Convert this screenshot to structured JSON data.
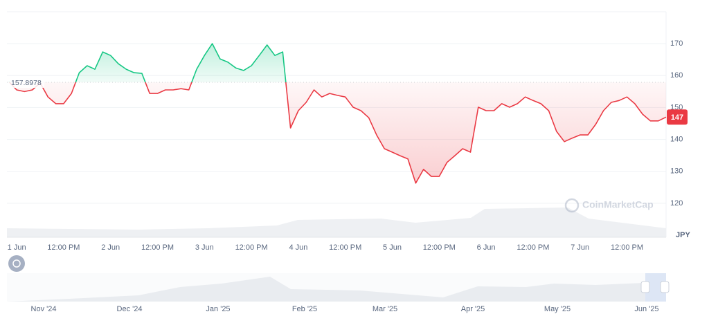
{
  "chart_data": {
    "type": "line",
    "x": [
      -2,
      0,
      2,
      4,
      6,
      8,
      10,
      12,
      14,
      16,
      18,
      20,
      22,
      24,
      26,
      28,
      30,
      32,
      34,
      36,
      38,
      40,
      42,
      44,
      46,
      48,
      50,
      52,
      54,
      56,
      58,
      60,
      62,
      64,
      66,
      68,
      70,
      72,
      74,
      76,
      78,
      80,
      82,
      84,
      86,
      88,
      90,
      92,
      94,
      96,
      98,
      100,
      102,
      104,
      106,
      108,
      110,
      112,
      114,
      116,
      118,
      120,
      122,
      124,
      126,
      128,
      130,
      132,
      134,
      136,
      138,
      140,
      142,
      144,
      146,
      148,
      150,
      152,
      154,
      156,
      158,
      160,
      162,
      164,
      166
    ],
    "series": [
      {
        "up_color": "#16c784",
        "down_color": "#ea3943",
        "values": [
          158.1,
          155.5,
          155,
          155.5,
          157.7,
          153.3,
          151.2,
          151.2,
          154.4,
          160.9,
          163.1,
          162,
          167.4,
          166.3,
          163.7,
          162,
          160.9,
          160.7,
          154.4,
          154.4,
          155.5,
          155.5,
          155.9,
          155.5,
          162,
          166.3,
          170,
          165.2,
          164.2,
          162.4,
          161.6,
          163.1,
          166.3,
          169.6,
          166.3,
          167.4,
          143.6,
          149,
          151.6,
          155.5,
          153.3,
          154.4,
          153.8,
          153.3,
          150.1,
          149,
          146.8,
          141.4,
          137.1,
          136,
          134.9,
          133.9,
          126.3,
          130.6,
          128.4,
          128.4,
          132.8,
          134.9,
          137.1,
          136,
          150.1,
          149,
          149,
          151.2,
          150.1,
          151.2,
          153.3,
          152.2,
          151.2,
          149,
          142.5,
          139.3,
          140.4,
          141.4,
          141.4,
          144.7,
          149,
          151.6,
          152.2,
          153.3,
          151.2,
          147.9,
          145.8,
          145.8,
          147
        ]
      }
    ],
    "baseline": 157.8978,
    "xlim": [
      -2.5,
      166
    ],
    "xticks": [
      {
        "value": 0,
        "label": "1 Jun"
      },
      {
        "value": 12,
        "label": "12:00 PM"
      },
      {
        "value": 24,
        "label": "2 Jun"
      },
      {
        "value": 36,
        "label": "12:00 PM"
      },
      {
        "value": 48,
        "label": "3 Jun"
      },
      {
        "value": 60,
        "label": "12:00 PM"
      },
      {
        "value": 72,
        "label": "4 Jun"
      },
      {
        "value": 84,
        "label": "12:00 PM"
      },
      {
        "value": 96,
        "label": "5 Jun"
      },
      {
        "value": 108,
        "label": "12:00 PM"
      },
      {
        "value": 120,
        "label": "6 Jun"
      },
      {
        "value": 132,
        "label": "12:00 PM"
      },
      {
        "value": 144,
        "label": "7 Jun"
      },
      {
        "value": 156,
        "label": "12:00 PM"
      }
    ],
    "ylim": [
      110,
      180
    ],
    "yticks": [
      120,
      130,
      140,
      150,
      160,
      170
    ],
    "y_unit": "JPY",
    "grid": true,
    "watermark": "CoinMarketCap"
  },
  "navigator": {
    "labels": [
      "Nov '24",
      "Dec '24",
      "Jan '25",
      "Feb '25",
      "Mar '25",
      "Apr '25",
      "May '25",
      "Jun '25"
    ]
  }
}
